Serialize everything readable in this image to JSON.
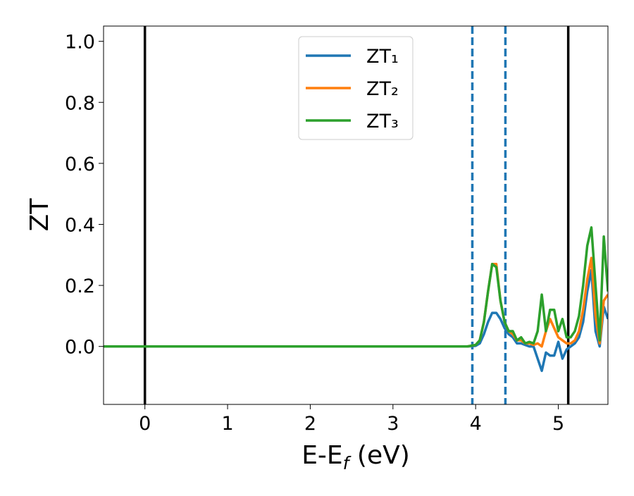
{
  "chart_data": {
    "type": "line",
    "x_label": [
      "E-E",
      "f",
      " (eV)"
    ],
    "y_label": "ZT",
    "x": [
      -0.5,
      3.8,
      3.9,
      4.0,
      4.05,
      4.1,
      4.15,
      4.2,
      4.25,
      4.3,
      4.35,
      4.4,
      4.45,
      4.5,
      4.55,
      4.6,
      4.65,
      4.7,
      4.75,
      4.8,
      4.85,
      4.9,
      4.95,
      5.0,
      5.05,
      5.1,
      5.15,
      5.2,
      5.25,
      5.3,
      5.35,
      5.4,
      5.45,
      5.5,
      5.55,
      5.6
    ],
    "series": [
      {
        "name": "ZT₁",
        "color": "#1f77b4",
        "values": [
          0,
          0,
          0,
          0.002,
          0.01,
          0.04,
          0.08,
          0.11,
          0.11,
          0.09,
          0.06,
          0.04,
          0.03,
          0.01,
          0.01,
          0.005,
          0,
          0,
          -0.04,
          -0.08,
          -0.02,
          -0.03,
          -0.03,
          0.015,
          -0.04,
          -0.01,
          0,
          0.01,
          0.03,
          0.08,
          0.18,
          0.25,
          0.05,
          0,
          0.13,
          0.09
        ]
      },
      {
        "name": "ZT₂",
        "color": "#ff7f0e",
        "values": [
          0,
          0,
          0,
          0.005,
          0.02,
          0.08,
          0.18,
          0.27,
          0.27,
          0.15,
          0.08,
          0.05,
          0.04,
          0.02,
          0.02,
          0.01,
          0.01,
          0.005,
          0.01,
          0,
          0.05,
          0.09,
          0.06,
          0.03,
          0.02,
          0.01,
          0.01,
          0.02,
          0.05,
          0.12,
          0.22,
          0.29,
          0.1,
          0.01,
          0.15,
          0.17
        ]
      },
      {
        "name": "ZT₃",
        "color": "#2ca02c",
        "values": [
          0,
          0,
          0,
          0.005,
          0.02,
          0.08,
          0.18,
          0.27,
          0.26,
          0.15,
          0.08,
          0.05,
          0.05,
          0.02,
          0.03,
          0.01,
          0.015,
          0.01,
          0.05,
          0.17,
          0.05,
          0.12,
          0.12,
          0.05,
          0.09,
          0.03,
          0.03,
          0.05,
          0.1,
          0.2,
          0.33,
          0.39,
          0.2,
          0.02,
          0.36,
          0.18
        ]
      }
    ],
    "vlines": [
      {
        "x": 0,
        "color": "#000000",
        "style": "solid"
      },
      {
        "x": 5.12,
        "color": "#000000",
        "style": "solid"
      },
      {
        "x": 3.96,
        "color": "#1f77b4",
        "style": "dashed"
      },
      {
        "x": 4.36,
        "color": "#1f77b4",
        "style": "dashed"
      }
    ],
    "xlim": [
      -0.5,
      5.6
    ],
    "xticks": [
      0,
      1,
      2,
      3,
      4,
      5
    ],
    "ylim": [
      -0.19,
      1.05
    ],
    "yticks": [
      {
        "value": 0,
        "label": "0.0"
      },
      {
        "value": 0.2,
        "label": "0.2"
      },
      {
        "value": 0.4,
        "label": "0.4"
      },
      {
        "value": 0.6,
        "label": "0.6"
      },
      {
        "value": 0.8,
        "label": "0.8"
      },
      {
        "value": 1,
        "label": "1.0"
      }
    ],
    "legend": "upper center",
    "grid": false
  }
}
